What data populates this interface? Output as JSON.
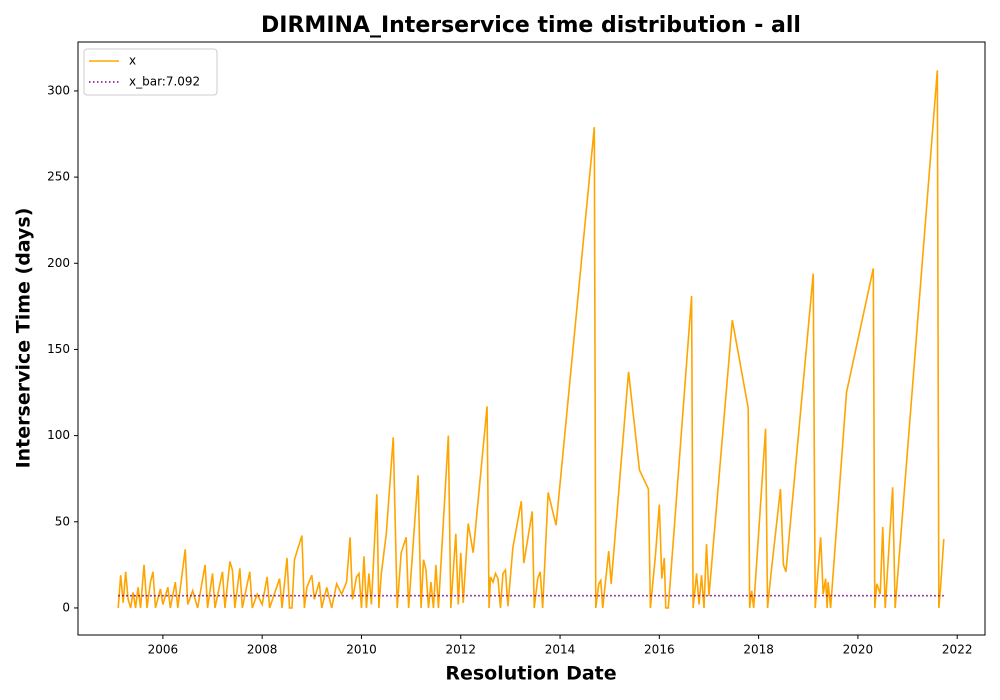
{
  "chart_data": {
    "type": "line",
    "title": "DIRMINA_Interservice time distribution - all",
    "x_label": "Resolution Date",
    "y_label": "Interservice Time (days)",
    "xlim": [
      2004.29,
      2022.56
    ],
    "ylim": [
      -15.7,
      328.4
    ],
    "xticks": [
      2006,
      2008,
      2010,
      2012,
      2014,
      2016,
      2018,
      2020,
      2022
    ],
    "yticks": [
      0,
      50,
      100,
      150,
      200,
      250,
      300
    ],
    "legend": "upper left",
    "series": [
      {
        "name": "x",
        "color": "#ffa500",
        "style": "solid",
        "x": [
          2005.1,
          2005.15,
          2005.2,
          2005.25,
          2005.3,
          2005.35,
          2005.4,
          2005.45,
          2005.5,
          2005.55,
          2005.62,
          2005.68,
          2005.75,
          2005.8,
          2005.85,
          2005.95,
          2006.0,
          2006.1,
          2006.15,
          2006.25,
          2006.3,
          2006.45,
          2006.5,
          2006.6,
          2006.7,
          2006.85,
          2006.9,
          2007.0,
          2007.05,
          2007.2,
          2007.25,
          2007.35,
          2007.4,
          2007.45,
          2007.55,
          2007.6,
          2007.75,
          2007.8,
          2007.9,
          2008.0,
          2008.1,
          2008.15,
          2008.35,
          2008.4,
          2008.5,
          2008.55,
          2008.6,
          2008.65,
          2008.8,
          2008.85,
          2008.9,
          2009.0,
          2009.05,
          2009.15,
          2009.2,
          2009.3,
          2009.4,
          2009.5,
          2009.6,
          2009.7,
          2009.77,
          2009.82,
          2009.9,
          2009.95,
          2010.0,
          2010.05,
          2010.1,
          2010.15,
          2010.2,
          2010.31,
          2010.35,
          2010.4,
          2010.5,
          2010.64,
          2010.72,
          2010.8,
          2010.9,
          2010.95,
          2011.14,
          2011.2,
          2011.25,
          2011.3,
          2011.35,
          2011.4,
          2011.45,
          2011.5,
          2011.55,
          2011.75,
          2011.8,
          2011.9,
          2011.95,
          2012.0,
          2012.05,
          2012.15,
          2012.25,
          2012.53,
          2012.57,
          2012.6,
          2012.65,
          2012.7,
          2012.75,
          2012.8,
          2012.85,
          2012.9,
          2012.95,
          2013.05,
          2013.22,
          2013.27,
          2013.44,
          2013.48,
          2013.55,
          2013.6,
          2013.65,
          2013.76,
          2013.92,
          2014.69,
          2014.72,
          2014.78,
          2014.82,
          2014.86,
          2014.98,
          2015.03,
          2015.38,
          2015.6,
          2015.78,
          2015.82,
          2015.92,
          2016.0,
          2016.05,
          2016.1,
          2016.13,
          2016.18,
          2016.65,
          2016.68,
          2016.75,
          2016.8,
          2016.85,
          2016.9,
          2016.95,
          2017.0,
          2017.47,
          2017.79,
          2017.82,
          2017.86,
          2017.9,
          2018.14,
          2018.18,
          2018.25,
          2018.44,
          2018.5,
          2018.55,
          2019.1,
          2019.14,
          2019.25,
          2019.3,
          2019.35,
          2019.38,
          2019.4,
          2019.45,
          2019.77,
          2020.31,
          2020.34,
          2020.38,
          2020.45,
          2020.5,
          2020.55,
          2020.7,
          2020.75,
          2021.6,
          2021.63,
          2021.66,
          2021.73
        ],
        "values": [
          0,
          19,
          3,
          21,
          5,
          0,
          9,
          0,
          12,
          0,
          25,
          0,
          15,
          21,
          0,
          11,
          2,
          12,
          0,
          15,
          0,
          34,
          2,
          10,
          0,
          25,
          0,
          20,
          0,
          21,
          0,
          27,
          22,
          0,
          23,
          0,
          21,
          0,
          8,
          2,
          18,
          0,
          17,
          0,
          29,
          0,
          0,
          28,
          42,
          0,
          12,
          19,
          5,
          15,
          0,
          12,
          0,
          14,
          8,
          15,
          41,
          5,
          18,
          20,
          0,
          30,
          0,
          20,
          2,
          66,
          0,
          20,
          43,
          99,
          0,
          32,
          41,
          0,
          77,
          0,
          28,
          22,
          0,
          15,
          0,
          25,
          0,
          100,
          0,
          43,
          2,
          32,
          3,
          49,
          32,
          117,
          0,
          18,
          15,
          20,
          17,
          0,
          20,
          22,
          1,
          35,
          62,
          26,
          56,
          0,
          17,
          21,
          0,
          67,
          48,
          279,
          0,
          14,
          16,
          0,
          33,
          14,
          137,
          80,
          69,
          0,
          30,
          60,
          17,
          29,
          0,
          0,
          181,
          0,
          20,
          2,
          19,
          0,
          37,
          7,
          167,
          116,
          0,
          10,
          0,
          104,
          0,
          20,
          69,
          25,
          21,
          194,
          0,
          41,
          8,
          17,
          0,
          15,
          0,
          125,
          197,
          0,
          14,
          8,
          47,
          0,
          70,
          0,
          312,
          0,
          10,
          40
        ]
      },
      {
        "name": "x_bar:7.092",
        "color": "#800080",
        "style": "dotted",
        "x": [
          2005.1,
          2021.73
        ],
        "values": [
          7.092,
          7.092
        ]
      }
    ]
  }
}
